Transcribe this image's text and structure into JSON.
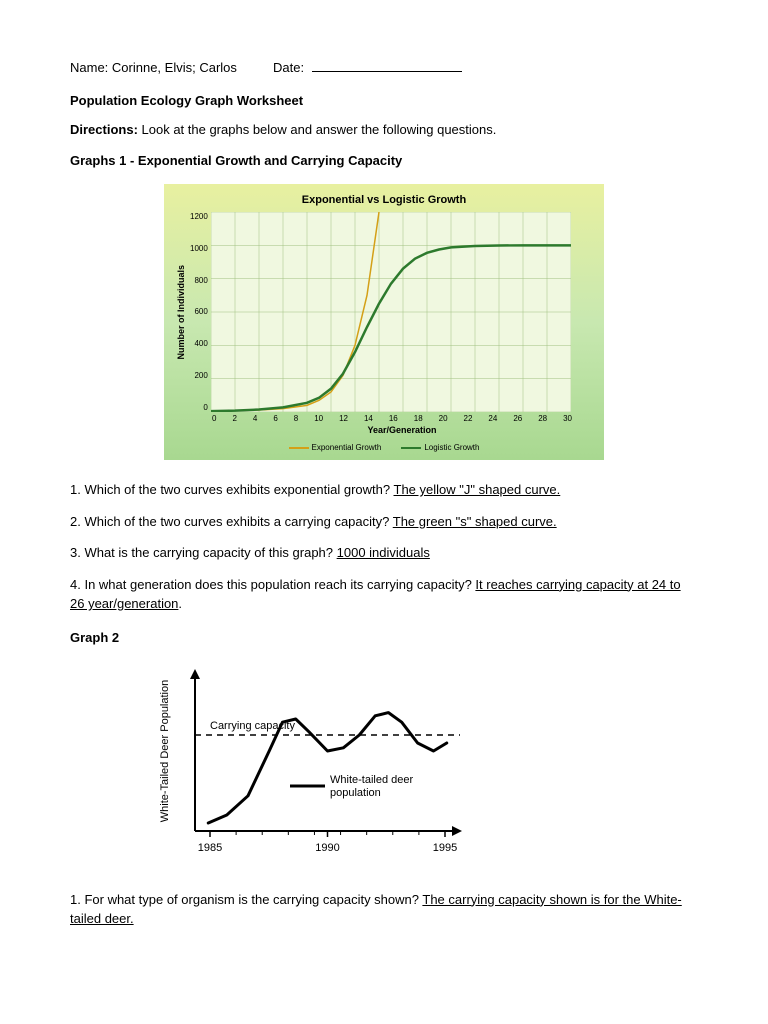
{
  "header": {
    "name_label": "Name: ",
    "name_value": "Corinne, Elvis; Carlos",
    "date_label": "Date: "
  },
  "title": "Population Ecology Graph Worksheet",
  "directions": {
    "label": "Directions:",
    "text": " Look at the graphs below and answer the following questions."
  },
  "section1": {
    "heading": "Graphs 1 - Exponential Growth and Carrying Capacity"
  },
  "chart1": {
    "type": "line",
    "title": "Exponential vs Logistic Growth",
    "ylabel": "Number of Individuals",
    "xlabel": "Year/Generation",
    "ylim": [
      0,
      1200
    ],
    "xlim": [
      0,
      30
    ],
    "yticks": [
      0,
      200,
      400,
      600,
      800,
      1000,
      1200
    ],
    "xticks": [
      0,
      2,
      4,
      6,
      8,
      10,
      12,
      14,
      16,
      18,
      20,
      22,
      24,
      26,
      28,
      30
    ],
    "background_color": "#f0f8e0",
    "grid_color": "#a0c080",
    "series": [
      {
        "name": "Exponential Growth",
        "color": "#d4a017",
        "width": 1.5,
        "points": [
          [
            0,
            5
          ],
          [
            2,
            8
          ],
          [
            4,
            12
          ],
          [
            6,
            20
          ],
          [
            8,
            40
          ],
          [
            9,
            70
          ],
          [
            10,
            120
          ],
          [
            11,
            220
          ],
          [
            12,
            400
          ],
          [
            13,
            700
          ],
          [
            14,
            1200
          ]
        ]
      },
      {
        "name": "Logistic Growth",
        "color": "#2d7a2d",
        "width": 2.5,
        "points": [
          [
            0,
            5
          ],
          [
            2,
            8
          ],
          [
            4,
            15
          ],
          [
            6,
            28
          ],
          [
            8,
            55
          ],
          [
            9,
            85
          ],
          [
            10,
            140
          ],
          [
            11,
            230
          ],
          [
            12,
            360
          ],
          [
            13,
            510
          ],
          [
            14,
            650
          ],
          [
            15,
            770
          ],
          [
            16,
            860
          ],
          [
            17,
            920
          ],
          [
            18,
            955
          ],
          [
            19,
            975
          ],
          [
            20,
            988
          ],
          [
            22,
            996
          ],
          [
            24,
            999
          ],
          [
            26,
            1000
          ],
          [
            28,
            1000
          ],
          [
            30,
            1000
          ]
        ]
      }
    ],
    "legend": [
      {
        "label": "Exponential Growth",
        "color": "#d4a017"
      },
      {
        "label": "Logistic Growth",
        "color": "#2d7a2d"
      }
    ]
  },
  "questions1": {
    "q1": {
      "text": "1. Which of the two curves exhibits exponential growth? ",
      "answer": "The yellow \"J\" shaped curve."
    },
    "q2": {
      "text": "2. Which of the two curves exhibits a carrying capacity? ",
      "answer": "The green \"s\" shaped curve."
    },
    "q3": {
      "text": "3. What is the carrying capacity of this graph? ",
      "answer": "        1000 individuals       "
    },
    "q4": {
      "text": "4. In what generation does this population reach its carrying capacity? ",
      "answer": "It reaches carrying capacity at 24 to 26 year/generation",
      "suffix": "."
    }
  },
  "section2": {
    "heading": "Graph 2"
  },
  "chart2": {
    "type": "line",
    "ylabel": "White-Tailed Deer Population",
    "xticks": [
      "1985",
      "1990",
      "1995"
    ],
    "carrying_capacity_label": "Carrying capacity",
    "series_label": "White-tailed deer population",
    "line_color": "#000000",
    "line_width": 3,
    "carrying_y": 0.6,
    "points": [
      [
        0.05,
        0.05
      ],
      [
        0.12,
        0.1
      ],
      [
        0.2,
        0.22
      ],
      [
        0.28,
        0.5
      ],
      [
        0.33,
        0.68
      ],
      [
        0.38,
        0.7
      ],
      [
        0.43,
        0.62
      ],
      [
        0.5,
        0.5
      ],
      [
        0.56,
        0.52
      ],
      [
        0.62,
        0.6
      ],
      [
        0.68,
        0.72
      ],
      [
        0.73,
        0.74
      ],
      [
        0.78,
        0.68
      ],
      [
        0.84,
        0.55
      ],
      [
        0.9,
        0.5
      ],
      [
        0.95,
        0.55
      ]
    ]
  },
  "questions2": {
    "q1": {
      "text": "1. For what type of organism is the carrying capacity shown? ",
      "answer": "The carrying capacity shown is for the White-tailed deer."
    }
  }
}
